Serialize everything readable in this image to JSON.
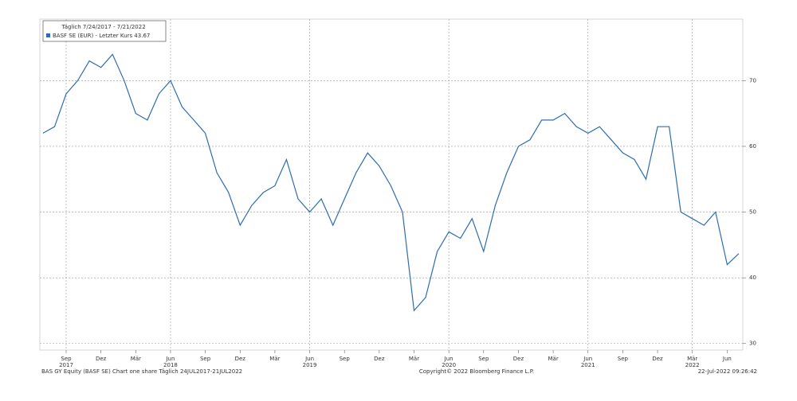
{
  "chart_data": {
    "type": "line",
    "legend_title": "Täglich 7/24/2017 - 7/21/2022",
    "legend_position": "upper left",
    "footer_left": "BAS GY Equity (BASF SE) Chart one share  Täglich 24JUL2017-21JUL2022",
    "copyright": "Copyright© 2022 Bloomberg Finance L.P.",
    "timestamp": "22-Jul-2022 09:26:42",
    "x": [
      "2017-07",
      "2017-08",
      "2017-09",
      "2017-10",
      "2017-11",
      "2017-12",
      "2018-01",
      "2018-02",
      "2018-03",
      "2018-04",
      "2018-05",
      "2018-06",
      "2018-07",
      "2018-08",
      "2018-09",
      "2018-10",
      "2018-11",
      "2018-12",
      "2019-01",
      "2019-02",
      "2019-03",
      "2019-04",
      "2019-05",
      "2019-06",
      "2019-07",
      "2019-08",
      "2019-09",
      "2019-10",
      "2019-11",
      "2019-12",
      "2020-01",
      "2020-02",
      "2020-03",
      "2020-04",
      "2020-05",
      "2020-06",
      "2020-07",
      "2020-08",
      "2020-09",
      "2020-10",
      "2020-11",
      "2020-12",
      "2021-01",
      "2021-02",
      "2021-03",
      "2021-04",
      "2021-05",
      "2021-06",
      "2021-07",
      "2021-08",
      "2021-09",
      "2021-10",
      "2021-11",
      "2021-12",
      "2022-01",
      "2022-02",
      "2022-03",
      "2022-04",
      "2022-05",
      "2022-06",
      "2022-07"
    ],
    "series": [
      {
        "name": "BASF SE (EUR) - Letzter Kurs 43.67",
        "color": "#2d6cb0",
        "values": [
          62,
          63,
          68,
          70,
          73,
          72,
          74,
          70,
          65,
          64,
          68,
          70,
          66,
          64,
          62,
          56,
          53,
          48,
          51,
          53,
          54,
          58,
          52,
          50,
          52,
          48,
          52,
          56,
          59,
          57,
          54,
          50,
          35,
          37,
          44,
          47,
          46,
          49,
          44,
          51,
          56,
          60,
          61,
          64,
          64,
          65,
          63,
          62,
          63,
          61,
          59,
          58,
          55,
          63,
          63,
          50,
          49,
          48,
          50,
          42,
          43.67
        ]
      }
    ],
    "ylim": [
      29,
      79
    ],
    "yticks": [
      30,
      40,
      50,
      60,
      70
    ],
    "grid": true,
    "xticks": [
      {
        "value": "2017-09",
        "label": "Sep"
      },
      {
        "value": "2017-12",
        "label": "Dez"
      },
      {
        "value": "2018-03",
        "label": "Mär"
      },
      {
        "value": "2018-06",
        "label": "Jun"
      },
      {
        "value": "2018-09",
        "label": "Sep"
      },
      {
        "value": "2018-12",
        "label": "Dez"
      },
      {
        "value": "2019-03",
        "label": "Mär"
      },
      {
        "value": "2019-06",
        "label": "Jun"
      },
      {
        "value": "2019-09",
        "label": "Sep"
      },
      {
        "value": "2019-12",
        "label": "Dez"
      },
      {
        "value": "2020-03",
        "label": "Mär"
      },
      {
        "value": "2020-06",
        "label": "Jun"
      },
      {
        "value": "2020-09",
        "label": "Sep"
      },
      {
        "value": "2020-12",
        "label": "Dez"
      },
      {
        "value": "2021-03",
        "label": "Mär"
      },
      {
        "value": "2021-06",
        "label": "Jun"
      },
      {
        "value": "2021-09",
        "label": "Sep"
      },
      {
        "value": "2021-12",
        "label": "Dez"
      },
      {
        "value": "2022-03",
        "label": "Mär"
      },
      {
        "value": "2022-06",
        "label": "Jun"
      }
    ],
    "xyears": [
      {
        "value": "2017-09",
        "label": "2017"
      },
      {
        "value": "2018-06",
        "label": "2018"
      },
      {
        "value": "2019-06",
        "label": "2019"
      },
      {
        "value": "2020-06",
        "label": "2020"
      },
      {
        "value": "2021-06",
        "label": "2021"
      },
      {
        "value": "2022-03",
        "label": "2022"
      }
    ]
  }
}
